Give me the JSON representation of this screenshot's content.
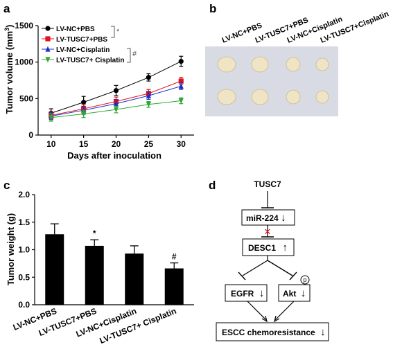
{
  "panel_labels": {
    "a": "a",
    "b": "b",
    "c": "c",
    "d": "d"
  },
  "colors": {
    "black": "#000000",
    "red": "#e0141a",
    "blue": "#1a2ec8",
    "green": "#2ea832",
    "photo_bg": "#d9dbe4",
    "tumor": "#efe4c4",
    "cross": "#e02020"
  },
  "chart_data": [
    {
      "type": "line",
      "xlabel": "Days after inoculation",
      "ylabel_main": "Tumor volume (mm",
      "ylabel_sup": "3",
      "ylabel_close": ")",
      "xlim": [
        8,
        32
      ],
      "ylim": [
        0,
        1500
      ],
      "xticks": [
        "10",
        "15",
        "20",
        "25",
        "30"
      ],
      "yticks": [
        "0",
        "500",
        "1000",
        "1500"
      ],
      "x": [
        10,
        15,
        20,
        25,
        30
      ],
      "series": [
        {
          "name": "LV-NC+PBS",
          "color": "#000000",
          "marker": "circle",
          "values": [
            300,
            450,
            610,
            790,
            1010
          ],
          "errors": [
            60,
            80,
            70,
            50,
            70
          ]
        },
        {
          "name": "LV-TUSC7+PBS",
          "color": "#e0141a",
          "marker": "square",
          "values": [
            270,
            360,
            460,
            570,
            740
          ],
          "errors": [
            50,
            60,
            60,
            55,
            50
          ]
        },
        {
          "name": "LV-NC+Cisplatin",
          "color": "#1a2ec8",
          "marker": "triangle-up",
          "values": [
            260,
            340,
            430,
            540,
            670
          ],
          "errors": [
            50,
            55,
            55,
            50,
            45
          ]
        },
        {
          "name": "LV-TUSC7+ Cisplatin",
          "color": "#2ea832",
          "marker": "triangle-down",
          "values": [
            240,
            290,
            350,
            420,
            470
          ],
          "errors": [
            50,
            50,
            45,
            40,
            40
          ]
        }
      ],
      "annotations": [
        "*",
        "#"
      ]
    },
    {
      "type": "bar",
      "ylabel": "Tumor weight (g)",
      "ylim": [
        0,
        2.0
      ],
      "yticks": [
        "0.0",
        "0.5",
        "1.0",
        "1.5",
        "2.0"
      ],
      "categories": [
        "LV-NC+PBS",
        "LV-TUSC7+PBS",
        "LV-NC+Cisplatin",
        "LV-TUSC7+ Cisplatin"
      ],
      "values": [
        1.28,
        1.07,
        0.93,
        0.66
      ],
      "errors": [
        0.19,
        0.11,
        0.14,
        0.1
      ],
      "bar_labels": [
        "",
        "*",
        "",
        "#"
      ]
    }
  ],
  "photo_labels": [
    "LV-NC+PBS",
    "LV-TUSC7+PBS",
    "LV-NC+Cisplatin",
    "LV-TUSC7+Cisplatin"
  ],
  "diagram": {
    "tusc7": "TUSC7",
    "mir224": "miR-224",
    "desc1": "DESC1",
    "egfr": "EGFR",
    "akt": "Akt",
    "p": "p",
    "escc": "ESCC chemoresistance",
    "down_arrow": "↓",
    "up_arrow": "↑",
    "cross": "✕"
  }
}
